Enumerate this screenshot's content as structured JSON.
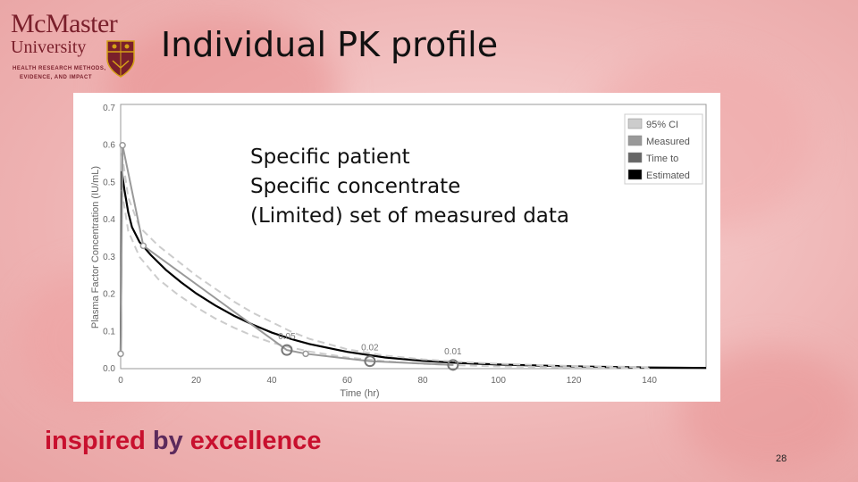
{
  "slide": {
    "title": "Individual PK profile",
    "logo": {
      "name": "McMaster",
      "university": "University",
      "line1": "HEALTH RESEARCH METHODS,",
      "line2": "EVIDENCE, AND IMPACT"
    },
    "overlay_lines": [
      "Specific patient",
      "Specific concentrate",
      "(Limited) set of measured data"
    ],
    "tagline": {
      "part1": "inspired ",
      "part2": "by ",
      "part3": "excellence"
    },
    "page_number": "28",
    "colors": {
      "tagline_red": "#c8102e",
      "tagline_purple": "#5c2a5c",
      "brand": "#7a1f2b"
    }
  },
  "chart_data": {
    "type": "line",
    "xlabel": "Time (hr)",
    "ylabel": "Plasma Factor Concentration (IU/mL)",
    "xlim": [
      0,
      155
    ],
    "ylim": [
      0,
      0.7
    ],
    "x_ticks": [
      0,
      20,
      40,
      60,
      80,
      100,
      120,
      140
    ],
    "y_ticks": [
      0.0,
      0.1,
      0.2,
      0.3,
      0.4,
      0.5,
      0.6,
      0.7
    ],
    "y_tick_labels": [
      "0.0",
      "0.1",
      "0.2",
      "0.3",
      "0.4",
      "0.5",
      "0.6",
      "0.7"
    ],
    "legend_position": "top-right",
    "legend": [
      {
        "label": "95% CI",
        "color": "#cccccc"
      },
      {
        "label": "Measured",
        "color": "#999999"
      },
      {
        "label": "Time to",
        "color": "#666666"
      },
      {
        "label": "Estimated",
        "color": "#000000"
      }
    ],
    "series": [
      {
        "name": "Estimated",
        "color": "#000000",
        "x": [
          0,
          0.3,
          1,
          2,
          3,
          5,
          8,
          12,
          16,
          20,
          25,
          30,
          35,
          40,
          45,
          50,
          60,
          70,
          80,
          90,
          100,
          120,
          140,
          155
        ],
        "y": [
          0.04,
          0.53,
          0.48,
          0.42,
          0.38,
          0.34,
          0.305,
          0.265,
          0.232,
          0.202,
          0.17,
          0.142,
          0.118,
          0.097,
          0.08,
          0.066,
          0.045,
          0.03,
          0.021,
          0.015,
          0.011,
          0.006,
          0.003,
          0.002
        ]
      },
      {
        "name": "95% CI",
        "color": "#cccccc",
        "dashed": true,
        "x": [
          0.3,
          2,
          5,
          10,
          15,
          20,
          25,
          30,
          35,
          40,
          45,
          50,
          60,
          70,
          80,
          90,
          100,
          120,
          140
        ],
        "y": [
          0.58,
          0.46,
          0.38,
          0.33,
          0.29,
          0.25,
          0.215,
          0.18,
          0.15,
          0.125,
          0.1,
          0.08,
          0.052,
          0.035,
          0.025,
          0.018,
          0.013,
          0.007,
          0.004
        ]
      },
      {
        "name": "95% CI",
        "color": "#cccccc",
        "dashed": true,
        "x": [
          0.3,
          2,
          5,
          10,
          15,
          20,
          25,
          30,
          35,
          40,
          45,
          50,
          60,
          70,
          80,
          90,
          100,
          120,
          140
        ],
        "y": [
          0.48,
          0.37,
          0.3,
          0.24,
          0.2,
          0.165,
          0.135,
          0.11,
          0.088,
          0.07,
          0.057,
          0.046,
          0.03,
          0.02,
          0.013,
          0.009,
          0.006,
          0.003,
          0.001
        ]
      },
      {
        "name": "Measured",
        "color": "#999999",
        "x": [
          0,
          0.5,
          6,
          44,
          49,
          66,
          88
        ],
        "y": [
          0.04,
          0.6,
          0.33,
          0.05,
          0.04,
          0.02,
          0.01
        ],
        "markers": [
          true,
          true,
          true,
          false,
          true,
          false,
          false
        ]
      }
    ],
    "highlight_points": [
      {
        "x": 44,
        "y": 0.05,
        "label": "0.05"
      },
      {
        "x": 66,
        "y": 0.02,
        "label": "0.02"
      },
      {
        "x": 88,
        "y": 0.01,
        "label": "0.01"
      }
    ]
  }
}
